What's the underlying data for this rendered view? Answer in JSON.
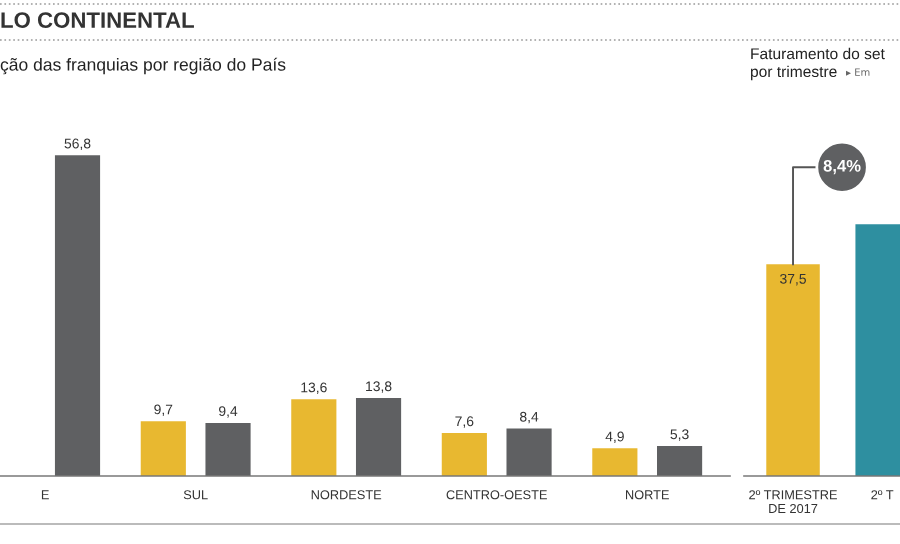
{
  "chart_data": [
    {
      "type": "bar",
      "title": "ção das franquias por região do País",
      "annotations": [
        "LO CONTINENTAL"
      ],
      "categories": [
        "E",
        "SUL",
        "NORDESTE",
        "CENTRO-OESTE",
        "NORTE"
      ],
      "series": [
        {
          "color": "#e8b830",
          "values": [
            null,
            9.7,
            13.6,
            7.6,
            4.9
          ],
          "value_labels": [
            null,
            "9,7",
            "13,6",
            "7,6",
            "4,9"
          ]
        },
        {
          "color": "#5f6062",
          "values": [
            56.8,
            9.4,
            13.8,
            8.4,
            5.3
          ],
          "value_labels": [
            "56,8",
            "9,4",
            "13,8",
            "8,4",
            "5,3"
          ]
        }
      ],
      "tick_labels": "x",
      "grid": false,
      "legend": false
    },
    {
      "type": "bar",
      "title": "Faturamento do set\npor trimestre",
      "subtitle": "▸ Em",
      "annotations": [
        "8,4%"
      ],
      "categories": [
        "2º TRIMESTRE\nDE 2017",
        "2º T"
      ],
      "values": [
        37.5,
        44.6
      ],
      "colors": [
        "#e8b830",
        "#2e8fa0"
      ],
      "value_labels": [
        "37,5",
        null
      ],
      "tick_labels": "x",
      "grid": false,
      "legend": false
    }
  ]
}
